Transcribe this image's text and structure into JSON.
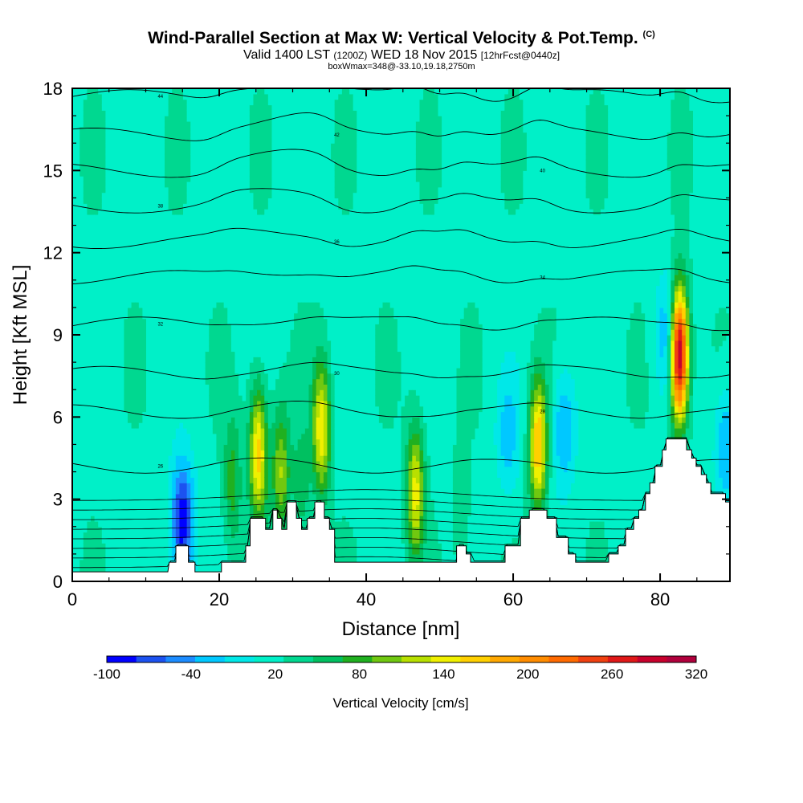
{
  "chart_data": {
    "type": "heatmap",
    "title": "Wind-Parallel Section at Max W: Vertical Velocity & Pot.Temp.",
    "title_mark": "(C)",
    "subtitle_valid": "Valid 1400 LST",
    "subtitle_utc": "(1200Z)",
    "subtitle_date": "WED 18 Nov 2015",
    "subtitle_fcst": "[12hrFcst@0440z]",
    "subtitle2": "boxWmax=348@-33.10,19.18,2750m",
    "xlabel": "Distance [nm]",
    "ylabel": "Height [Kft MSL]",
    "xlim": [
      0,
      89.5
    ],
    "ylim": [
      0,
      18
    ],
    "xticks": [
      "0",
      "20",
      "40",
      "60",
      "80"
    ],
    "yticks": [
      "0",
      "3",
      "6",
      "9",
      "12",
      "15",
      "18"
    ],
    "colorbar": {
      "label": "Vertical Velocity [cm/s]",
      "tick_labels": [
        "-100",
        "-40",
        "20",
        "80",
        "140",
        "200",
        "260",
        "320"
      ],
      "range": [
        -100,
        320
      ],
      "colors": [
        "#0000ff",
        "#1c52f0",
        "#1c8cff",
        "#00c8ff",
        "#00e8e8",
        "#00f0c8",
        "#00d890",
        "#00c060",
        "#20b020",
        "#70c810",
        "#b8e000",
        "#f0f000",
        "#ffd000",
        "#ffa800",
        "#ff8c00",
        "#ff6a00",
        "#f04010",
        "#e01818",
        "#c8002c",
        "#b0003c"
      ]
    },
    "background_value": 20,
    "updrafts": [
      {
        "x": 82.6,
        "z": 8.3,
        "peak": 320
      },
      {
        "x": 63.4,
        "z": 5.0,
        "peak": 175
      },
      {
        "x": 25.3,
        "z": 4.7,
        "peak": 165
      },
      {
        "x": 33.9,
        "z": 5.6,
        "peak": 150
      },
      {
        "x": 28.4,
        "z": 4.0,
        "peak": 110
      },
      {
        "x": 46.7,
        "z": 3.3,
        "peak": 140
      },
      {
        "x": 21.8,
        "z": 3.6,
        "peak": 80
      },
      {
        "x": 31.2,
        "z": 3.4,
        "peak": 60
      },
      {
        "x": 53.0,
        "z": 2.5,
        "peak": 45
      }
    ],
    "downdrafts": [
      {
        "x": 15.0,
        "z": 2.2,
        "peak": -100
      },
      {
        "x": 66.9,
        "z": 5.6,
        "peak": -40
      },
      {
        "x": 81.0,
        "z": 9.0,
        "peak": -40
      },
      {
        "x": 59.3,
        "z": 5.3,
        "peak": -25
      },
      {
        "x": 89.0,
        "z": 5.0,
        "peak": -40
      }
    ],
    "terrain_kft": [
      [
        0,
        0.35
      ],
      [
        13,
        0.35
      ],
      [
        13.2,
        0.7
      ],
      [
        14.1,
        0.7
      ],
      [
        14.1,
        1.3
      ],
      [
        15.8,
        1.3
      ],
      [
        15.8,
        0.7
      ],
      [
        16.7,
        0.7
      ],
      [
        16.7,
        0.35
      ],
      [
        20.3,
        0.35
      ],
      [
        20.3,
        0.7
      ],
      [
        23.6,
        0.7
      ],
      [
        23.6,
        1.3
      ],
      [
        24.2,
        1.3
      ],
      [
        24.2,
        2.3
      ],
      [
        26.3,
        2.3
      ],
      [
        26.3,
        1.9
      ],
      [
        27.3,
        1.9
      ],
      [
        27.3,
        2.6
      ],
      [
        27.9,
        2.6
      ],
      [
        27.9,
        2.3
      ],
      [
        28.5,
        2.3
      ],
      [
        28.5,
        1.9
      ],
      [
        29.2,
        1.9
      ],
      [
        29.2,
        2.9
      ],
      [
        30.5,
        2.9
      ],
      [
        30.5,
        2.3
      ],
      [
        31.2,
        2.3
      ],
      [
        31.2,
        1.9
      ],
      [
        32.0,
        1.9
      ],
      [
        32.0,
        2.3
      ],
      [
        33.0,
        2.3
      ],
      [
        33.0,
        2.9
      ],
      [
        34.3,
        2.9
      ],
      [
        34.3,
        2.3
      ],
      [
        35.0,
        2.3
      ],
      [
        35.0,
        1.9
      ],
      [
        35.7,
        1.9
      ],
      [
        35.7,
        0.7
      ],
      [
        52.3,
        0.7
      ],
      [
        52.3,
        1.3
      ],
      [
        53.6,
        1.3
      ],
      [
        53.6,
        1.0
      ],
      [
        54.2,
        1.0
      ],
      [
        54.2,
        0.7
      ],
      [
        58.9,
        0.7
      ],
      [
        58.9,
        1.3
      ],
      [
        61.0,
        1.3
      ],
      [
        61.0,
        2.3
      ],
      [
        62.2,
        2.3
      ],
      [
        62.2,
        2.6
      ],
      [
        64.6,
        2.6
      ],
      [
        64.6,
        2.3
      ],
      [
        65.9,
        2.3
      ],
      [
        65.9,
        1.6
      ],
      [
        67.5,
        1.6
      ],
      [
        67.5,
        1.0
      ],
      [
        68.5,
        1.0
      ],
      [
        68.5,
        0.7
      ],
      [
        73.0,
        0.7
      ],
      [
        73.0,
        1.0
      ],
      [
        74.3,
        1.0
      ],
      [
        74.3,
        1.3
      ],
      [
        75.3,
        1.3
      ],
      [
        75.3,
        1.9
      ],
      [
        76.4,
        1.9
      ],
      [
        76.4,
        2.3
      ],
      [
        77.1,
        2.3
      ],
      [
        77.1,
        2.6
      ],
      [
        78.0,
        2.6
      ],
      [
        78.0,
        3.2
      ],
      [
        78.6,
        3.2
      ],
      [
        78.6,
        3.6
      ],
      [
        79.3,
        3.6
      ],
      [
        79.3,
        4.2
      ],
      [
        80.3,
        4.2
      ],
      [
        80.3,
        4.8
      ],
      [
        80.8,
        4.8
      ],
      [
        80.8,
        5.2
      ],
      [
        83.6,
        5.2
      ],
      [
        83.6,
        4.8
      ],
      [
        84.3,
        4.8
      ],
      [
        84.3,
        4.5
      ],
      [
        84.9,
        4.5
      ],
      [
        84.9,
        4.2
      ],
      [
        85.6,
        4.2
      ],
      [
        85.6,
        3.9
      ],
      [
        86.3,
        3.9
      ],
      [
        86.3,
        3.6
      ],
      [
        86.9,
        3.6
      ],
      [
        86.9,
        3.2
      ],
      [
        88.9,
        3.2
      ],
      [
        88.9,
        2.9
      ],
      [
        89.5,
        2.9
      ]
    ],
    "pot_temp_isolines": [
      {
        "label": "44",
        "z": 17.7
      },
      {
        "label": "42",
        "z": 16.3
      },
      {
        "label": "40",
        "z": 15.0
      },
      {
        "label": "38",
        "z": 13.7
      },
      {
        "label": "36",
        "z": 12.4
      },
      {
        "label": "34",
        "z": 11.1
      },
      {
        "label": "32",
        "z": 9.4
      },
      {
        "label": "30",
        "z": 7.6
      },
      {
        "label": "28",
        "z": 6.2
      },
      {
        "label": "26",
        "z": 4.2
      }
    ]
  }
}
